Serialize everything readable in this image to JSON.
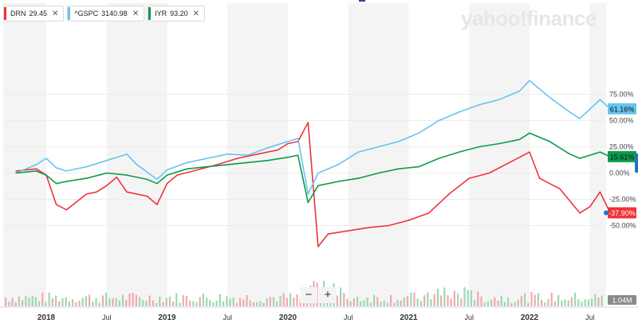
{
  "legend": [
    {
      "symbol": "DRN",
      "value": "29.45",
      "color": "#ef3339"
    },
    {
      "symbol": "^GSPC",
      "value": "3140.98",
      "color": "#67c4ee"
    },
    {
      "symbol": "IYR",
      "value": "93.20",
      "color": "#0c9b4a"
    }
  ],
  "brand": "yahoo!finance",
  "zoom": {
    "minus": "−",
    "plus": "+"
  },
  "chart_data": {
    "type": "line",
    "x_tick_labels": [
      "2018",
      "Jul",
      "2019",
      "Jul",
      "2020",
      "Jul",
      "2021",
      "Jul",
      "2022",
      "Jul"
    ],
    "y_tick_labels": [
      "75.00%",
      "50.00%",
      "25.00%",
      "0.00%",
      "-25.00%",
      "-50.00%"
    ],
    "y_ticks": [
      75,
      50,
      25,
      0,
      -25,
      -50
    ],
    "ylim": [
      -80,
      92
    ],
    "grid": "alternating-shaded-year-bands",
    "legend_position": "top-left",
    "volume_label": "1.04M",
    "series": [
      {
        "name": "DRN",
        "color": "#ef3339",
        "last_label": "-37.90%",
        "last_value": -37.9,
        "x": [
          "2017-10",
          "2017-12",
          "2018-01",
          "2018-02",
          "2018-03",
          "2018-05",
          "2018-06",
          "2018-07",
          "2018-08",
          "2018-09",
          "2018-11",
          "2018-12",
          "2019-01",
          "2019-02",
          "2019-04",
          "2019-06",
          "2019-08",
          "2019-10",
          "2019-12",
          "2020-01",
          "2020-02",
          "2020-03",
          "2020-04",
          "2020-05",
          "2020-07",
          "2020-09",
          "2020-11",
          "2021-01",
          "2021-03",
          "2021-05",
          "2021-07",
          "2021-09",
          "2021-11",
          "2022-01",
          "2022-02",
          "2022-04",
          "2022-06",
          "2022-07",
          "2022-08",
          "2022-09"
        ],
        "y": [
          2,
          4,
          -2,
          -30,
          -35,
          -20,
          -18,
          -12,
          -4,
          -18,
          -22,
          -30,
          -10,
          -2,
          3,
          8,
          14,
          18,
          22,
          28,
          30,
          48,
          -70,
          -58,
          -55,
          -52,
          -50,
          -45,
          -38,
          -20,
          -5,
          0,
          10,
          20,
          -5,
          -15,
          -38,
          -32,
          -18,
          -37.9
        ]
      },
      {
        "name": "^GSPC",
        "color": "#67c4ee",
        "last_label": "61.16%",
        "last_value": 61.16,
        "x": [
          "2017-10",
          "2017-12",
          "2018-01",
          "2018-02",
          "2018-03",
          "2018-05",
          "2018-07",
          "2018-09",
          "2018-10",
          "2018-12",
          "2019-01",
          "2019-03",
          "2019-05",
          "2019-07",
          "2019-09",
          "2019-11",
          "2020-01",
          "2020-02",
          "2020-03",
          "2020-04",
          "2020-06",
          "2020-08",
          "2020-10",
          "2020-12",
          "2021-02",
          "2021-04",
          "2021-06",
          "2021-08",
          "2021-10",
          "2021-12",
          "2022-01",
          "2022-03",
          "2022-05",
          "2022-06",
          "2022-08",
          "2022-09"
        ],
        "y": [
          0,
          8,
          14,
          5,
          2,
          6,
          12,
          18,
          8,
          -6,
          3,
          10,
          14,
          18,
          17,
          24,
          30,
          33,
          -20,
          0,
          8,
          20,
          25,
          30,
          38,
          50,
          58,
          65,
          70,
          78,
          88,
          72,
          58,
          52,
          70,
          61.16
        ]
      },
      {
        "name": "IYR",
        "color": "#0c9b4a",
        "last_label": "15.61%",
        "last_value": 15.61,
        "x": [
          "2017-10",
          "2017-12",
          "2018-01",
          "2018-02",
          "2018-03",
          "2018-05",
          "2018-07",
          "2018-09",
          "2018-11",
          "2018-12",
          "2019-01",
          "2019-03",
          "2019-05",
          "2019-07",
          "2019-09",
          "2019-11",
          "2020-01",
          "2020-02",
          "2020-03",
          "2020-04",
          "2020-06",
          "2020-08",
          "2020-10",
          "2020-12",
          "2021-02",
          "2021-04",
          "2021-06",
          "2021-08",
          "2021-10",
          "2021-12",
          "2022-01",
          "2022-03",
          "2022-05",
          "2022-06",
          "2022-08",
          "2022-09"
        ],
        "y": [
          0,
          2,
          -2,
          -10,
          -8,
          -5,
          0,
          -2,
          -6,
          -10,
          -2,
          4,
          6,
          8,
          10,
          12,
          15,
          17,
          -28,
          -12,
          -8,
          -5,
          0,
          4,
          6,
          14,
          20,
          25,
          28,
          32,
          38,
          30,
          18,
          14,
          20,
          15.61
        ]
      }
    ]
  }
}
